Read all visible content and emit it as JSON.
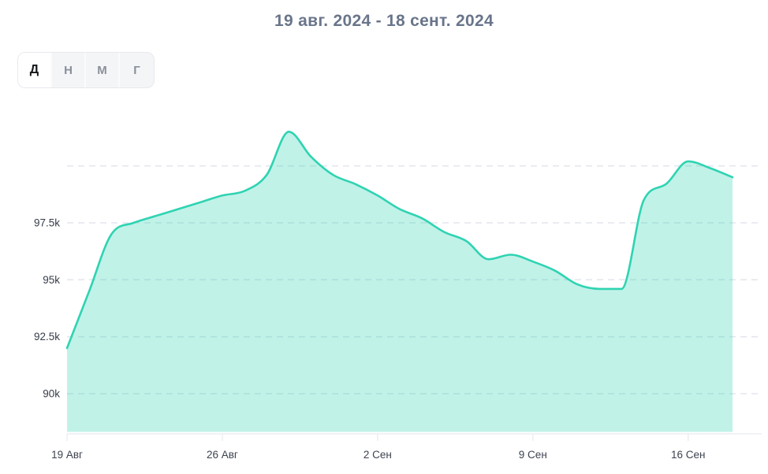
{
  "title": "19 авг. 2024 - 18 сент. 2024",
  "period_selector": {
    "options": [
      {
        "label": "Д",
        "active": true
      },
      {
        "label": "Н",
        "active": false
      },
      {
        "label": "М",
        "active": false
      },
      {
        "label": "Г",
        "active": false
      }
    ]
  },
  "colors": {
    "line": "#2fd3b2",
    "fill": "rgba(47,211,178,0.30)",
    "gridline": "#e3e6ed",
    "axis": "#eceef3",
    "title_text": "#69758a",
    "y_label_text": "#363d49",
    "x_label_text": "#3c434f"
  },
  "chart_data": {
    "type": "area",
    "title": "19 авг. 2024 - 18 сент. 2024",
    "x": [
      "19 Авг",
      "20 Авг",
      "21 Авг",
      "22 Авг",
      "23 Авг",
      "24 Авг",
      "25 Авг",
      "26 Авг",
      "27 Авг",
      "28 Авг",
      "29 Авг",
      "30 Авг",
      "31 Авг",
      "1 Сен",
      "2 Сен",
      "3 Сен",
      "4 Сен",
      "5 Сен",
      "6 Сен",
      "7 Сен",
      "8 Сен",
      "9 Сен",
      "10 Сен",
      "11 Сен",
      "12 Сен",
      "13 Сен",
      "14 Сен",
      "15 Сен",
      "16 Сен",
      "17 Сен",
      "18 Сен"
    ],
    "values": [
      92000,
      94500,
      97000,
      97500,
      97800,
      98100,
      98400,
      98700,
      98900,
      99600,
      101500,
      100400,
      99600,
      99200,
      98700,
      98100,
      97700,
      97100,
      96700,
      95900,
      96100,
      95800,
      95400,
      94800,
      94600,
      94600,
      98500,
      99200,
      100200,
      99900,
      99500
    ],
    "x_tick_indices": [
      0,
      7,
      14,
      21,
      28
    ],
    "x_tick_labels": [
      "19 Авг",
      "26 Авг",
      "2 Сен",
      "9 Сен",
      "16 Сен"
    ],
    "y_ticks": [
      {
        "value": 90000,
        "label": "90k"
      },
      {
        "value": 92500,
        "label": "92.5k"
      },
      {
        "value": 95000,
        "label": "95k"
      },
      {
        "value": 97500,
        "label": "97.5k"
      },
      {
        "value": 100000,
        "label": ""
      }
    ],
    "ylim": [
      88300,
      102100
    ],
    "grid": "dashed-horizontal",
    "legend": "none",
    "smoothing": "monotone"
  }
}
